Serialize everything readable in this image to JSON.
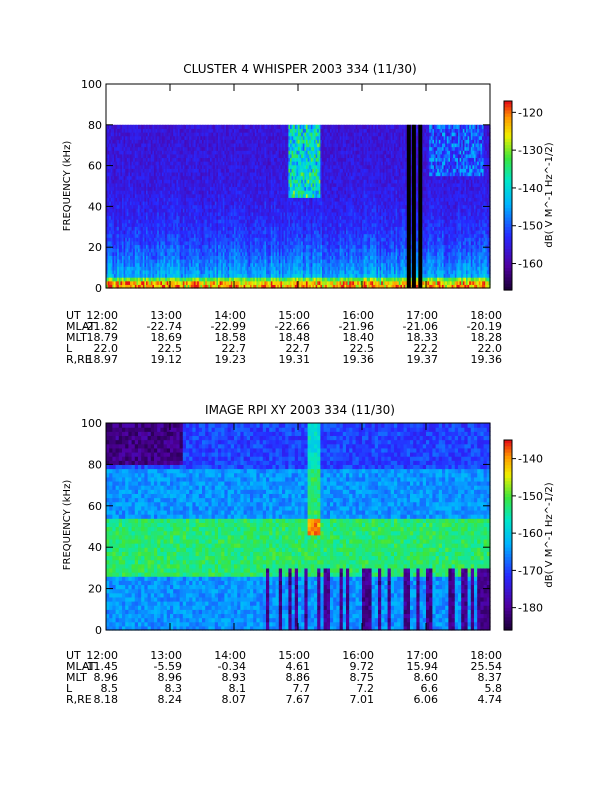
{
  "chart_data": [
    {
      "type": "heatmap",
      "title": "CLUSTER 4 WHISPER 2003 334 (11/30)",
      "ylabel": "FREQUENCY (kHz)",
      "yticks": [
        0,
        20,
        40,
        60,
        80,
        100
      ],
      "ylim": [
        0,
        100
      ],
      "data_top_khz": 80,
      "xticks": [
        "12:00",
        "13:00",
        "14:00",
        "15:00",
        "16:00",
        "17:00",
        "18:00"
      ],
      "xlim_hours": [
        12,
        18
      ],
      "colorbar": {
        "label": "dB( V M^-1 Hz^-1/2)",
        "ticks": [
          -120,
          -130,
          -140,
          -150,
          -160
        ],
        "range": [
          -167,
          -117
        ]
      },
      "data_gaps_hours": [
        16.7,
        16.78,
        16.88
      ],
      "ephemeris": [
        {
          "label": "UT",
          "values": [
            "12:00",
            "13:00",
            "14:00",
            "15:00",
            "16:00",
            "17:00",
            "18:00"
          ]
        },
        {
          "label": "MLAT",
          "values": [
            "-21.82",
            "-22.74",
            "-22.99",
            "-22.66",
            "-21.96",
            "-21.06",
            "-20.19"
          ]
        },
        {
          "label": "MLT",
          "values": [
            "18.79",
            "18.69",
            "18.58",
            "18.48",
            "18.40",
            "18.33",
            "18.28"
          ]
        },
        {
          "label": "L",
          "values": [
            "22.0",
            "22.5",
            "22.7",
            "22.7",
            "22.5",
            "22.2",
            "22.0"
          ]
        },
        {
          "label": "R,RE",
          "values": [
            "18.97",
            "19.12",
            "19.23",
            "19.31",
            "19.36",
            "19.37",
            "19.36"
          ]
        }
      ]
    },
    {
      "type": "heatmap",
      "title": "IMAGE RPI XY 2003 334 (11/30)",
      "ylabel": "FREQUENCY (kHz)",
      "yticks": [
        0,
        20,
        40,
        60,
        80,
        100
      ],
      "ylim": [
        0,
        100
      ],
      "xticks": [
        "12:00",
        "13:00",
        "14:00",
        "15:00",
        "16:00",
        "17:00",
        "18:00"
      ],
      "xlim_hours": [
        12,
        18
      ],
      "colorbar": {
        "label": "dB( V M^-1 Hz^-1/2)",
        "ticks": [
          -140,
          -150,
          -160,
          -170,
          -180
        ],
        "range": [
          -186,
          -135
        ]
      },
      "ephemeris": [
        {
          "label": "UT",
          "values": [
            "12:00",
            "13:00",
            "14:00",
            "15:00",
            "16:00",
            "17:00",
            "18:00"
          ]
        },
        {
          "label": "MLAT",
          "values": [
            "-11.45",
            "-5.59",
            "-0.34",
            "4.61",
            "9.72",
            "15.94",
            "25.54"
          ]
        },
        {
          "label": "MLT",
          "values": [
            "8.96",
            "8.96",
            "8.93",
            "8.86",
            "8.75",
            "8.60",
            "8.37"
          ]
        },
        {
          "label": "L",
          "values": [
            "8.5",
            "8.3",
            "8.1",
            "7.7",
            "7.2",
            "6.6",
            "5.8"
          ]
        },
        {
          "label": "R,RE",
          "values": [
            "8.18",
            "8.24",
            "8.07",
            "7.67",
            "7.01",
            "6.06",
            "4.74"
          ]
        }
      ]
    }
  ]
}
